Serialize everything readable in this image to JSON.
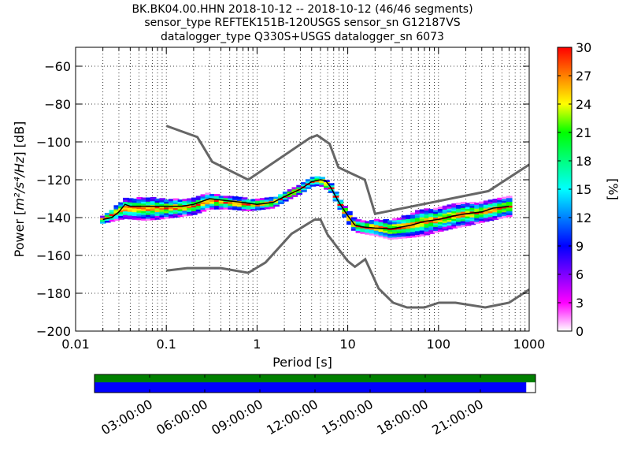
{
  "figure": {
    "title_lines": [
      "BK.BK04.00.HHN   2018-10-12 -- 2018-10-12  (46/46 segments)",
      "sensor_type REFTEK151B-120USGS sensor_sn G12187VS",
      "datalogger_type Q330S+USGS datalogger_sn 6073"
    ]
  },
  "chart_data": [
    {
      "type": "heatmap",
      "title": "BK.BK04.00.HHN   2018-10-12 -- 2018-10-12  (46/46 segments)",
      "xlabel": "Period [s]",
      "ylabel": "Power [m²/s⁴/Hz] [dB]",
      "ylabel_parts": {
        "pre": "Power [",
        "post": "] [dB]"
      },
      "x_scale": "log",
      "xlim": [
        0.01,
        1000
      ],
      "ylim": [
        -200,
        -50
      ],
      "x_ticks": [
        0.01,
        0.1,
        1,
        10,
        100,
        1000
      ],
      "x_tick_labels": [
        "0.01",
        "0.1",
        "1",
        "10",
        "100",
        "1000"
      ],
      "y_ticks": [
        -200,
        -180,
        -160,
        -140,
        -120,
        -100,
        -80,
        -60
      ],
      "y_tick_labels": [
        "−200",
        "−180",
        "−160",
        "−140",
        "−120",
        "−100",
        "−80",
        "−60"
      ],
      "grid": "dotted",
      "colorbar": {
        "label": "[%]",
        "range": [
          0,
          30
        ],
        "ticks": [
          0,
          3,
          6,
          9,
          12,
          15,
          18,
          21,
          24,
          27,
          30
        ],
        "tick_labels": [
          "0",
          "3",
          "6",
          "9",
          "12",
          "15",
          "18",
          "21",
          "24",
          "27",
          "30"
        ],
        "colors": [
          "#ffffff",
          "#ff00ff",
          "#7f00ff",
          "#0000ff",
          "#0080ff",
          "#00ffff",
          "#00ff80",
          "#00ff00",
          "#ffff00",
          "#ff8000",
          "#ff0000"
        ]
      },
      "model_color": "#666666",
      "nhnm": {
        "x": [
          0.1,
          0.22,
          0.32,
          0.8,
          3.8,
          4.6,
          6.3,
          7.9,
          15.4,
          20,
          354.8,
          1000
        ],
        "y": [
          -91.5,
          -97.4,
          -110.5,
          -120,
          -98,
          -96.5,
          -101,
          -113.5,
          -120,
          -138,
          -126,
          -112
        ]
      },
      "nlnm": {
        "x": [
          0.1,
          0.17,
          0.4,
          0.8,
          1.24,
          2.4,
          4.3,
          5,
          6,
          10,
          12,
          15.6,
          21.9,
          31.6,
          45,
          70,
          101,
          154,
          328,
          600,
          1000
        ],
        "y": [
          -168,
          -166.7,
          -166.7,
          -169.2,
          -163.7,
          -148.6,
          -141.1,
          -141,
          -149,
          -163,
          -166,
          -162,
          -177.5,
          -185,
          -187.5,
          -187.5,
          -185,
          -185,
          -187.5,
          -185,
          -178
        ]
      },
      "mean_psd": {
        "x": [
          0.02,
          0.025,
          0.03,
          0.035,
          0.04,
          0.06,
          0.1,
          0.15,
          0.2,
          0.3,
          0.45,
          0.7,
          1,
          1.5,
          2.2,
          3,
          4,
          5,
          5.7,
          6.5,
          8,
          10,
          12,
          15,
          20,
          30,
          50,
          70,
          100,
          150,
          200,
          300,
          400,
          600
        ],
        "y": [
          -141,
          -140,
          -137,
          -133,
          -134,
          -134,
          -134,
          -134,
          -133,
          -130,
          -131,
          -132,
          -133,
          -132,
          -128,
          -125,
          -121,
          -120,
          -120.5,
          -124,
          -132,
          -139,
          -144,
          -145,
          -145.5,
          -146,
          -144,
          -142,
          -141,
          -139,
          -138,
          -137,
          -135,
          -134
        ]
      },
      "heat_segments": [
        {
          "x": [
            0.02,
            0.035,
            0.06,
            0.1,
            0.2,
            0.3,
            0.5,
            0.8,
            1,
            1.5,
            2.2,
            3,
            4,
            5,
            6.5,
            8,
            10,
            12,
            15,
            20,
            30,
            50,
            70,
            100,
            150,
            200,
            300,
            600
          ],
          "c": [
            -141,
            -135,
            -135,
            -135,
            -134,
            -131,
            -132,
            -133,
            -133,
            -132,
            -128,
            -125,
            -121,
            -120,
            -124,
            -132,
            -139,
            -144,
            -145,
            -145,
            -146,
            -144,
            -142,
            -141,
            -139,
            -138,
            -137,
            -134
          ],
          "half": [
            1.5,
            5,
            6,
            5,
            4,
            4,
            3,
            3,
            2.5,
            2.5,
            2,
            2,
            2,
            2.5,
            2,
            2,
            3,
            3,
            3,
            4,
            5,
            6,
            7,
            6,
            6,
            6,
            5,
            5
          ]
        }
      ],
      "timeline": {
        "tick_labels": [
          "03:00:00",
          "06:00:00",
          "09:00:00",
          "12:00:00",
          "15:00:00",
          "18:00:00",
          "21:00:00"
        ],
        "tick_fractions": [
          0.125,
          0.25,
          0.375,
          0.5,
          0.625,
          0.75,
          0.875
        ],
        "available_color": "#008000",
        "used_color": "#0000ff",
        "available_fraction": 1.0,
        "used_fraction": 0.979
      }
    }
  ]
}
